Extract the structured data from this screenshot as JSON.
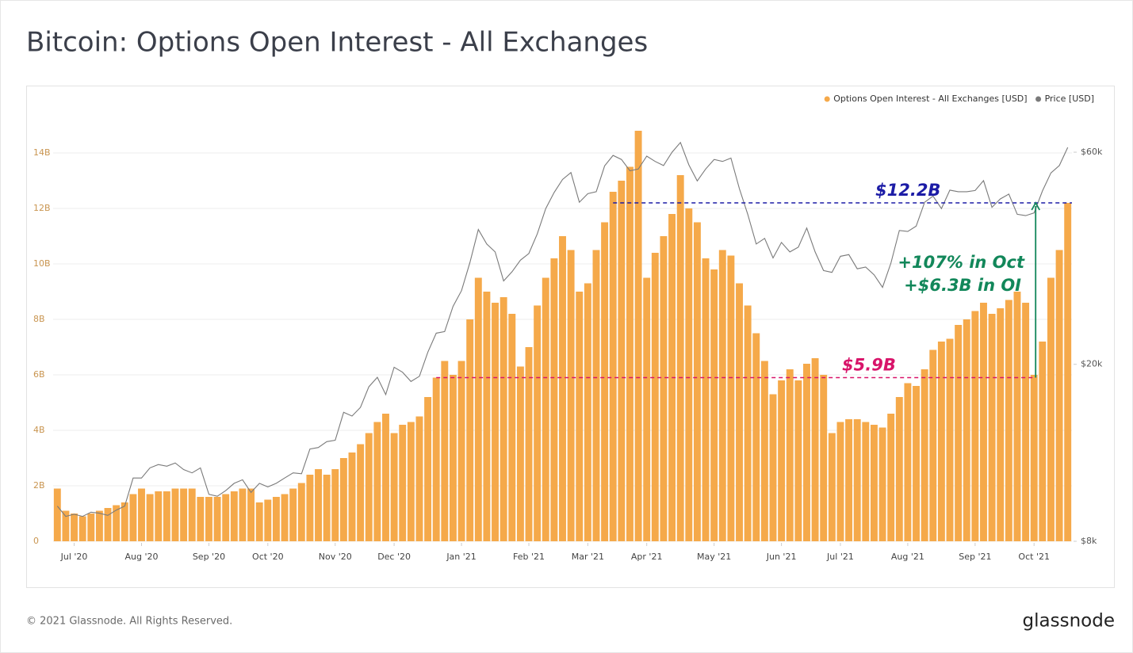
{
  "chart_data": {
    "type": "bar",
    "title": "Bitcoin: Options Open Interest - All Exchanges",
    "categories": [
      null,
      null,
      "Jul '20",
      null,
      null,
      null,
      null,
      null,
      null,
      null,
      "Aug '20",
      null,
      null,
      null,
      null,
      null,
      null,
      null,
      "Sep '20",
      null,
      null,
      null,
      null,
      null,
      null,
      "Oct '20",
      null,
      null,
      null,
      null,
      null,
      null,
      null,
      "Nov '20",
      null,
      null,
      null,
      null,
      null,
      null,
      "Dec '20",
      null,
      null,
      null,
      null,
      null,
      null,
      null,
      "Jan '21",
      null,
      null,
      null,
      null,
      null,
      null,
      null,
      "Feb '21",
      null,
      null,
      null,
      null,
      null,
      null,
      "Mar '21",
      null,
      null,
      null,
      null,
      null,
      null,
      "Apr '21",
      null,
      null,
      null,
      null,
      null,
      null,
      null,
      "May '21",
      null,
      null,
      null,
      null,
      null,
      null,
      null,
      "Jun '21",
      null,
      null,
      null,
      null,
      null,
      null,
      "Jul '21",
      null,
      null,
      null,
      null,
      null,
      null,
      null,
      "Aug '21",
      null,
      null,
      null,
      null,
      null,
      null,
      null,
      "Sep '21",
      null,
      null,
      null,
      null,
      null,
      null,
      "Oct '21",
      null,
      null,
      null,
      null
    ],
    "series": [
      {
        "name": "Options Open Interest - All Exchanges [USD]",
        "type": "bar",
        "color": "#f5a94a",
        "values": [
          1.9,
          1.1,
          1.0,
          0.9,
          1.0,
          1.1,
          1.2,
          1.3,
          1.4,
          1.7,
          1.9,
          1.7,
          1.8,
          1.8,
          1.9,
          1.9,
          1.9,
          1.6,
          1.6,
          1.6,
          1.7,
          1.8,
          1.9,
          1.9,
          1.4,
          1.5,
          1.6,
          1.7,
          1.9,
          2.1,
          2.4,
          2.6,
          2.4,
          2.6,
          3.0,
          3.2,
          3.5,
          3.9,
          4.3,
          4.6,
          3.9,
          4.2,
          4.3,
          4.5,
          5.2,
          5.9,
          6.5,
          6.0,
          6.5,
          8.0,
          9.5,
          9.0,
          8.6,
          8.8,
          8.2,
          6.3,
          7.0,
          8.5,
          9.5,
          10.2,
          11.0,
          10.5,
          9.0,
          9.3,
          10.5,
          11.5,
          12.6,
          13.0,
          13.5,
          14.8,
          9.5,
          10.4,
          11.0,
          11.8,
          13.2,
          12.0,
          11.5,
          10.2,
          9.8,
          10.5,
          10.3,
          9.3,
          8.5,
          7.5,
          6.5,
          5.3,
          5.8,
          6.2,
          5.8,
          6.4,
          6.6,
          6.0,
          3.9,
          4.3,
          4.4,
          4.4,
          4.3,
          4.2,
          4.1,
          4.6,
          5.2,
          5.7,
          5.6,
          6.2,
          6.9,
          7.2,
          7.3,
          7.8,
          8.0,
          8.3,
          8.6,
          8.2,
          8.4,
          8.7,
          9.0,
          8.6,
          6.0,
          7.2,
          9.5,
          10.5,
          12.2
        ]
      },
      {
        "name": "Price [USD]",
        "type": "line",
        "axis": "y2",
        "color": "#7a7a7a",
        "values": [
          9600,
          9100,
          9200,
          9100,
          9300,
          9250,
          9150,
          9400,
          9600,
          11100,
          11100,
          11700,
          11900,
          11800,
          12000,
          11600,
          11400,
          11700,
          10200,
          10100,
          10400,
          10800,
          11000,
          10300,
          10800,
          10600,
          10800,
          11100,
          11400,
          11350,
          12900,
          13000,
          13400,
          13500,
          15600,
          15300,
          16000,
          17800,
          18700,
          17100,
          19700,
          19200,
          18300,
          18800,
          21300,
          23500,
          23700,
          27000,
          29300,
          33900,
          40200,
          37300,
          35800,
          30800,
          32300,
          34300,
          35500,
          39300,
          44800,
          48700,
          52100,
          54000,
          46300,
          48400,
          48900,
          55900,
          59000,
          57800,
          54500,
          55000,
          58800,
          57200,
          56000,
          60000,
          63100,
          56200,
          51700,
          55000,
          57800,
          57200,
          58200,
          49700,
          43500,
          37300,
          38400,
          34700,
          37600,
          35800,
          36700,
          40500,
          35800,
          32500,
          32200,
          35000,
          35300,
          32800,
          33100,
          31800,
          29800,
          33800,
          40000,
          39800,
          40900,
          46300,
          47800,
          44800,
          49300,
          48900,
          48900,
          49200,
          51800,
          45100,
          47100,
          48300,
          43500,
          43200,
          43800,
          49100,
          53900,
          56000,
          61500
        ]
      }
    ],
    "ylim": [
      0,
      15
    ],
    "yticks": [
      0,
      {
        "value": 2,
        "label": "2B"
      },
      {
        "value": 4,
        "label": "4B"
      },
      {
        "value": 6,
        "label": "6B"
      },
      {
        "value": 8,
        "label": "8B"
      },
      {
        "value": 10,
        "label": "10B"
      },
      {
        "value": 12,
        "label": "12B"
      },
      {
        "value": 14,
        "label": "14B"
      }
    ],
    "y2lim": [
      8000,
      69000
    ],
    "y2scale": "log",
    "y2ticks": [
      {
        "value": 8000,
        "label": "$8k"
      },
      {
        "value": 20000,
        "label": "$20k"
      },
      {
        "value": 60000,
        "label": "$60k"
      }
    ],
    "grid": true,
    "legend": "top-right",
    "annotations": [
      {
        "text": "$12.2B",
        "value": 12.2,
        "color": "#1c1ca6"
      },
      {
        "text": "$5.9B",
        "value": 5.9,
        "color": "#d8146a"
      },
      {
        "text": "+107% in Oct",
        "color": "#12875a"
      },
      {
        "text": "+$6.3B in OI",
        "color": "#12875a"
      }
    ]
  },
  "footer": {
    "copyright": "© 2021 Glassnode. All Rights Reserved.",
    "brand": "glassnode"
  }
}
